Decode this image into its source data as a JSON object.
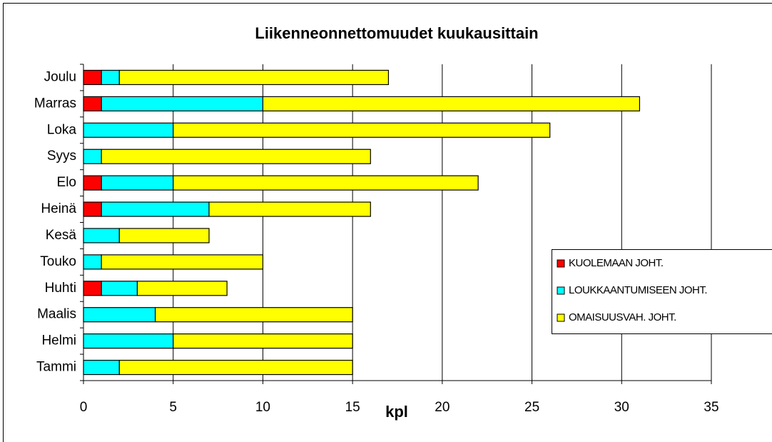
{
  "chart_data": {
    "type": "stacked-barh",
    "title": "Liikenneonnettomuudet kuukausittain",
    "xlabel": "kpl",
    "categories": [
      "Tammi",
      "Helmi",
      "Maalis",
      "Huhti",
      "Touko",
      "Kesä",
      "Heinä",
      "Elo",
      "Syys",
      "Loka",
      "Marras",
      "Joulu"
    ],
    "series": [
      {
        "name": "KUOLEMAAN JOHT.",
        "color": "#ff0000",
        "values": [
          0,
          0,
          0,
          1,
          0,
          0,
          1,
          1,
          0,
          0,
          1,
          1
        ]
      },
      {
        "name": "LOUKKAANTUMISEEN JOHT.",
        "color": "#00ffff",
        "values": [
          2,
          5,
          4,
          2,
          1,
          2,
          6,
          4,
          1,
          5,
          9,
          1
        ]
      },
      {
        "name": "OMAISUUSVAH. JOHT.",
        "color": "#ffff00",
        "values": [
          13,
          10,
          11,
          5,
          9,
          5,
          9,
          17,
          15,
          21,
          21,
          15
        ]
      }
    ],
    "xlim": [
      0,
      35
    ],
    "xticks": [
      0,
      5,
      10,
      15,
      20,
      25,
      30,
      35
    ],
    "grid": true,
    "legend": "right"
  }
}
